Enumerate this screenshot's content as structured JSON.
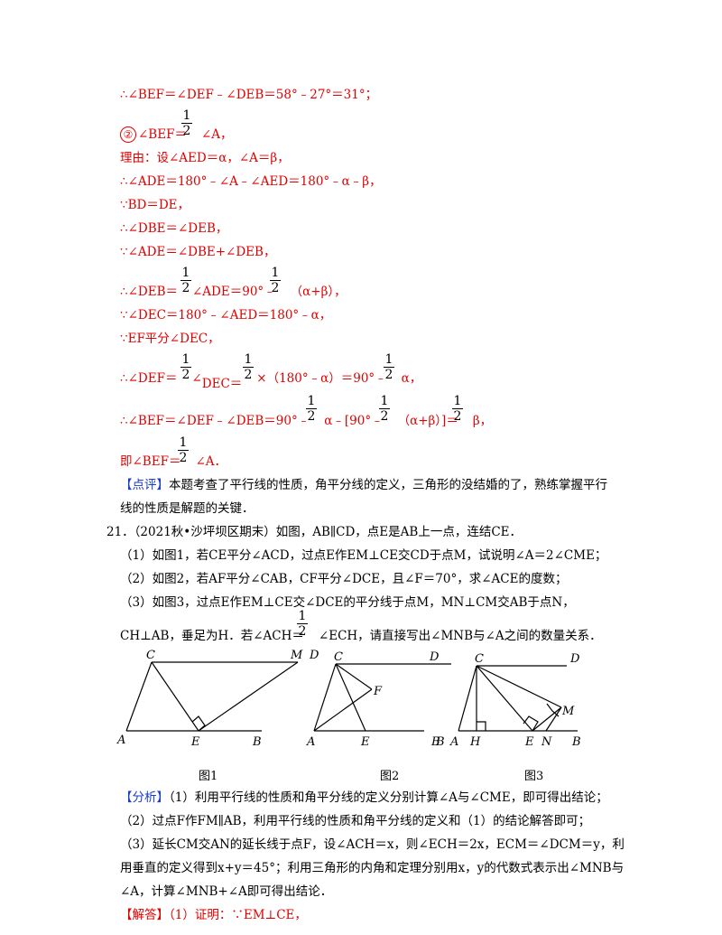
{
  "lines": {
    "l01": "∴∠BEF＝∠DEF﹣∠DEB＝58°﹣27°＝31°；",
    "l02_num": "②",
    "l02_a": "∠BEF＝",
    "l02_b": "∠A，",
    "l03": "理由：设∠AED＝α，∠A＝β，",
    "l04": "∴∠ADE＝180°﹣∠A﹣∠AED＝180°﹣α﹣β，",
    "l05": "∵BD＝DE，",
    "l06": "∴∠DBE＝∠DEB，",
    "l07": "∵∠ADE＝∠DBE+∠DEB，",
    "l08_a": "∴∠DEB＝",
    "l08_b": "∠ADE＝90°﹣",
    "l08_c": "（α+β），",
    "l09": "∵∠DEC＝180°﹣∠AED＝180°﹣α，",
    "l10": "∵EF平分∠DEC，",
    "l11_a": "∴∠DEF＝",
    "l11_b": "∠",
    "l11_c": "DEC＝",
    "l11_d": "×",
    "l11_e": "（180°﹣α）＝90°﹣",
    "l11_f": "α",
    "l11_g": "，",
    "l12_a": "∴∠BEF＝∠DEF﹣∠DEB＝90°﹣",
    "l12_b": "α",
    "l12_c": "﹣[90°﹣",
    "l12_d": "（α+β）]＝",
    "l12_e": "β，",
    "l13_a": "即∠BEF＝",
    "l13_b": "∠A．",
    "comment_tag": "【点评】",
    "comment_1": "本题考查了平行线的性质，角平分线的定义，三角形的没结婚的了，熟练掌握平行",
    "comment_2": "线的性质是解题的关键．",
    "q21": "21．（2021秋•沙坪坝区期末）如图，AB∥CD，点E是AB上一点，连结CE．",
    "q21_1": "（1）如图1，若CE平分∠ACD，过点E作EM⊥CE交CD于点M，试说明∠A＝2∠CME；",
    "q21_2": "（2）如图2，若AF平分∠CAB，CF平分∠DCE，且∠F＝70°，求∠ACE的度数；",
    "q21_3": "（3）如图3，过点E作EM⊥CE交∠DCE的平分线于点M，MN⊥CM交AB于点N，",
    "q21_4a": "CH⊥AB，垂足为H．若∠ACH＝",
    "q21_4b": "∠ECH，请直接写出∠MNB与∠A之间的数量关系．",
    "analysis_tag": "【分析】",
    "analysis_1": "（1）利用平行线的性质和角平分线的定义分别计算∠A与∠CME，即可得出结论；",
    "analysis_2": "（2）过点F作FM∥AB，利用平行线的性质和角平分线的定义和（1）的结论解答即可；",
    "analysis_3": "（3）延长CM交AN的延长线于点F，设∠ACH＝x，则∠ECH＝2x，ECM＝∠DCM＝y，利",
    "analysis_4": "用垂直的定义得到x+y＝45°；利用三角形的内角和定理分别用x，y的代数式表示出∠MNB与",
    "analysis_5": "∠A，计算∠MNB+∠A即可得出结论．",
    "answer_tag": "【解答】",
    "answer_1": "（1）证明：∵EM⊥CE，"
  },
  "fraction": {
    "numerator": "1",
    "denominator": "2"
  },
  "figures": {
    "fig1": {
      "caption": "图1",
      "labels": [
        "C",
        "M",
        "D",
        "A",
        "E",
        "B"
      ]
    },
    "fig2": {
      "caption": "图2",
      "labels": [
        "C",
        "D",
        "F",
        "A",
        "E",
        "B"
      ]
    },
    "fig3": {
      "caption": "图3",
      "labels": [
        "C",
        "D",
        "M",
        "B",
        "A",
        "H",
        "E",
        "N",
        "B"
      ]
    }
  }
}
